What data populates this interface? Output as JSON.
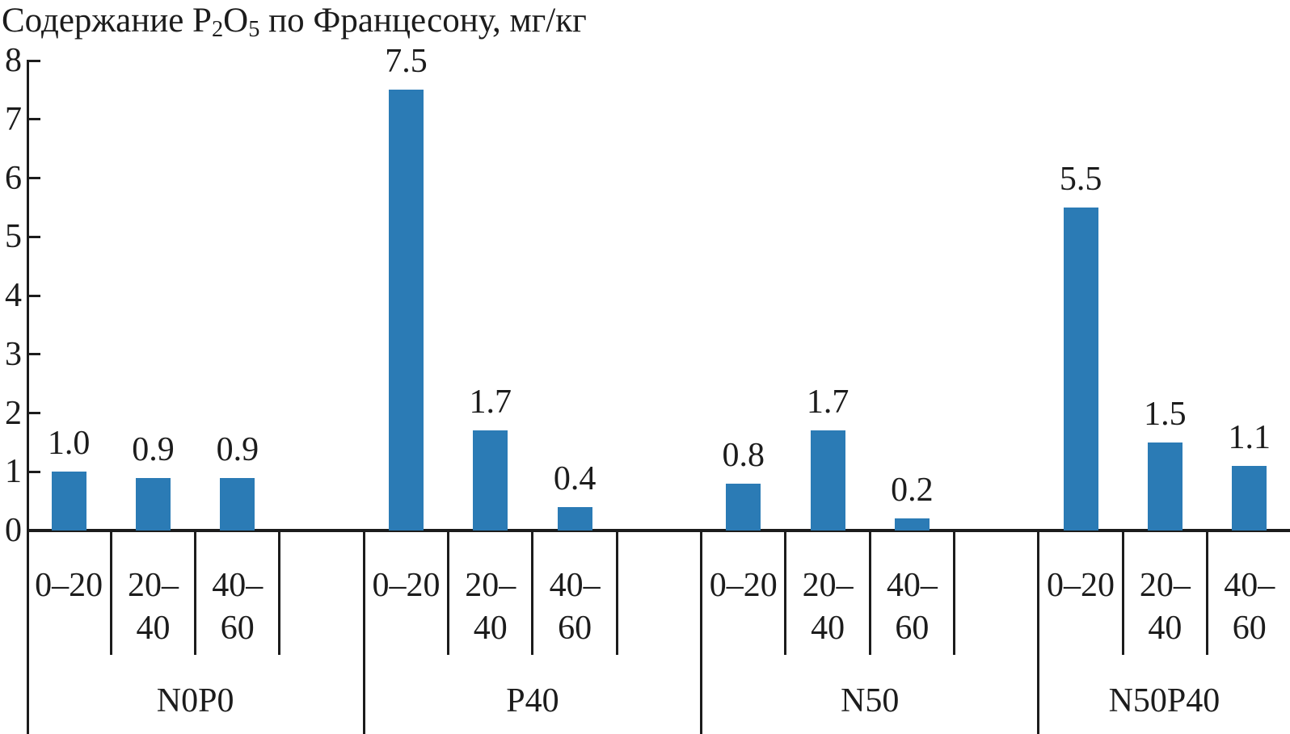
{
  "page": {
    "background": "#ffffff"
  },
  "colors": {
    "bar": "#2b7bb5",
    "ink": "#1c1c1c",
    "background": "#ffffff"
  },
  "title": {
    "part1": "Содержание P",
    "sub1": "2",
    "part2": "O",
    "sub2": "5",
    "part3": " по Францесону, мг/кг"
  },
  "chart_data": {
    "type": "bar",
    "title": "Содержание P2O5 по Францесону, мг/кг",
    "ylabel": "Содержание P2O5 по Францесону, мг/кг",
    "xlabel": "",
    "ylim": [
      0,
      8
    ],
    "yticks": [
      "0",
      "1",
      "2",
      "3",
      "4",
      "5",
      "6",
      "7",
      "8"
    ],
    "grid": false,
    "legend_position": "none",
    "bar_color": "#2b7bb5",
    "categories": [
      "N0P0",
      "P40",
      "N50",
      "N50P40"
    ],
    "depth_row_labels": [
      [
        "0–20"
      ],
      [
        "20–",
        "40"
      ],
      [
        "40–",
        "60"
      ]
    ],
    "series": [
      {
        "name": "0–20",
        "values": [
          1.0,
          7.5,
          0.8,
          5.5
        ]
      },
      {
        "name": "20–40",
        "values": [
          0.9,
          1.7,
          1.7,
          1.5
        ]
      },
      {
        "name": "40–60",
        "values": [
          0.9,
          0.4,
          0.2,
          1.1
        ]
      }
    ],
    "groups": [
      {
        "label": "N0P0",
        "values": [
          1.0,
          0.9,
          0.9
        ],
        "value_labels": [
          "1.0",
          "0.9",
          "0.9"
        ]
      },
      {
        "label": "P40",
        "values": [
          7.5,
          1.7,
          0.4
        ],
        "value_labels": [
          "7.5",
          "1.7",
          "0.4"
        ]
      },
      {
        "label": "N50",
        "values": [
          0.8,
          1.7,
          0.2
        ],
        "value_labels": [
          "0.8",
          "1.7",
          "0.2"
        ]
      },
      {
        "label": "N50P40",
        "values": [
          5.5,
          1.5,
          1.1
        ],
        "value_labels": [
          "5.5",
          "1.5",
          "1.1"
        ]
      }
    ]
  }
}
